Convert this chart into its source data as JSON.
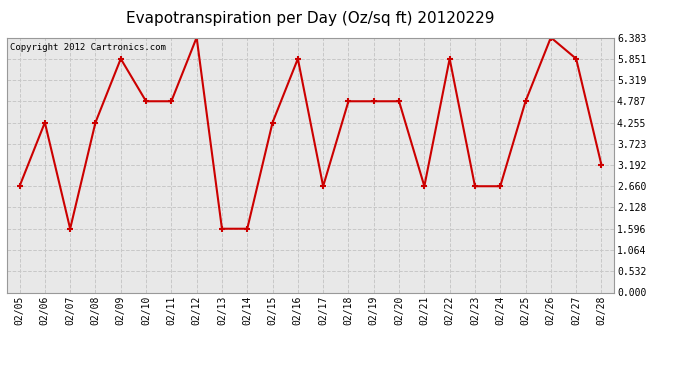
{
  "title": "Evapotranspiration per Day (Oz/sq ft) 20120229",
  "copyright": "Copyright 2012 Cartronics.com",
  "dates": [
    "02/05",
    "02/06",
    "02/07",
    "02/08",
    "02/09",
    "02/10",
    "02/11",
    "02/12",
    "02/13",
    "02/14",
    "02/15",
    "02/16",
    "02/17",
    "02/18",
    "02/19",
    "02/20",
    "02/21",
    "02/22",
    "02/23",
    "02/24",
    "02/25",
    "02/26",
    "02/27",
    "02/28"
  ],
  "values": [
    2.66,
    4.255,
    1.596,
    4.255,
    5.851,
    4.787,
    4.787,
    6.383,
    1.596,
    1.596,
    4.255,
    5.851,
    2.66,
    4.787,
    4.787,
    4.787,
    2.66,
    5.851,
    2.66,
    2.66,
    4.787,
    6.383,
    5.851,
    3.192
  ],
  "line_color": "#cc0000",
  "marker": "+",
  "marker_size": 5,
  "marker_linewidth": 1.5,
  "line_width": 1.5,
  "background_color": "#ffffff",
  "plot_bg_color": "#e8e8e8",
  "grid_color": "#c8c8c8",
  "ylim": [
    0.0,
    6.383
  ],
  "yticks": [
    0.0,
    0.532,
    1.064,
    1.596,
    2.128,
    2.66,
    3.192,
    3.723,
    4.255,
    4.787,
    5.319,
    5.851,
    6.383
  ],
  "title_fontsize": 11,
  "copyright_fontsize": 6.5,
  "tick_fontsize": 7
}
